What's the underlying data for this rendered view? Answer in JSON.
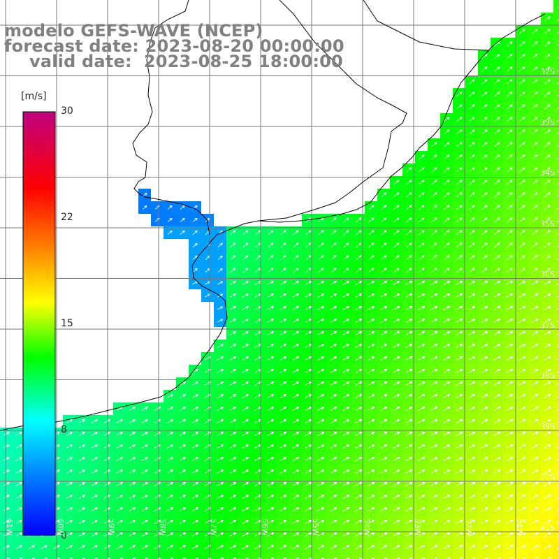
{
  "header": {
    "model": "modelo GEFS-WAVE (NCEP)",
    "forecast": "forecast date: 2023-08-20 00:00:00",
    "valid": "valid date:  2023-08-25 18:00:00"
  },
  "colorbar": {
    "unit": "[m/s]",
    "range": [
      0,
      30
    ],
    "ticks": [
      "30",
      "22",
      "15",
      "8",
      "0"
    ],
    "tick_values": [
      30,
      22,
      15,
      8,
      0
    ],
    "colors": [
      "#0000ff",
      "#0080ff",
      "#00ffff",
      "#00ff00",
      "#ffff00",
      "#ff8000",
      "#ff0000",
      "#c0007f"
    ]
  },
  "map": {
    "variable": "wind speed with direction arrows",
    "land_color": "#ffffff",
    "grid": true,
    "lat_labels": [
      "32S",
      "33S",
      "34S",
      "35S",
      "36S",
      "37S",
      "38S",
      "39S",
      "40S",
      "41S"
    ],
    "lon_labels": [
      "61W",
      "60W",
      "59W",
      "58W",
      "57W",
      "56W",
      "55W",
      "54W",
      "53W",
      "52W",
      "51W"
    ]
  }
}
